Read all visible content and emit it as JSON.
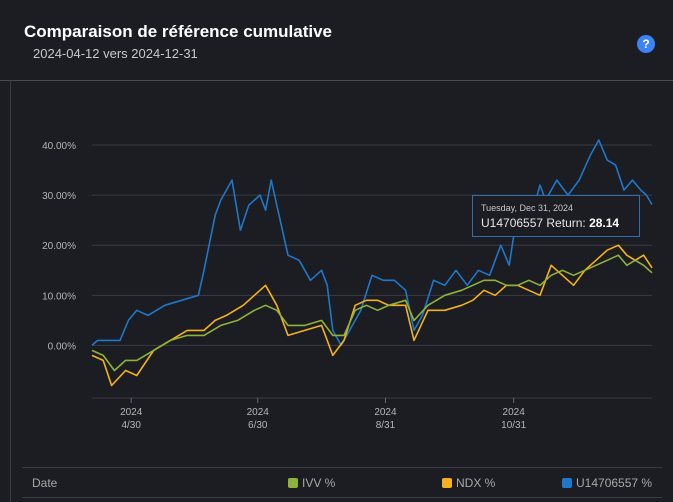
{
  "header": {
    "title": "Comparaison de référence cumulative",
    "subtitle": "2024-04-12 vers 2024-12-31",
    "help_icon": "?"
  },
  "tooltip": {
    "date": "Tuesday, Dec 31, 2024",
    "label": "U14706557 Return: ",
    "value": "28.14"
  },
  "legend": {
    "date_label": "Date",
    "items": [
      {
        "label": "IVV %",
        "color": "#8fb33a"
      },
      {
        "label": "NDX %",
        "color": "#f5b21c"
      },
      {
        "label": "U14706557 %",
        "color": "#1f77c9"
      }
    ]
  },
  "chart_data": {
    "type": "line",
    "ylabels": [
      "40.00%",
      "30.00%",
      "20.00%",
      "10.00%",
      "0.00%"
    ],
    "yticks": [
      40,
      30,
      20,
      10,
      0
    ],
    "ylim": [
      -10.5,
      45
    ],
    "xticks": [
      {
        "year": "2024",
        "md": "4/30",
        "t": 0.07
      },
      {
        "year": "2024",
        "md": "6/30",
        "t": 0.296
      },
      {
        "year": "2024",
        "md": "8/31",
        "t": 0.524
      },
      {
        "year": "2024",
        "md": "10/31",
        "t": 0.753
      }
    ],
    "grid": true,
    "series": [
      {
        "name": "U14706557 %",
        "color": "#1f77c9",
        "points": [
          [
            0,
            0
          ],
          [
            0.01,
            1
          ],
          [
            0.05,
            1
          ],
          [
            0.065,
            5
          ],
          [
            0.08,
            7
          ],
          [
            0.1,
            6
          ],
          [
            0.13,
            8
          ],
          [
            0.16,
            9
          ],
          [
            0.19,
            10
          ],
          [
            0.2,
            15
          ],
          [
            0.22,
            26
          ],
          [
            0.23,
            29
          ],
          [
            0.25,
            33
          ],
          [
            0.265,
            23
          ],
          [
            0.28,
            28
          ],
          [
            0.3,
            30
          ],
          [
            0.31,
            27
          ],
          [
            0.32,
            33
          ],
          [
            0.33,
            28
          ],
          [
            0.35,
            18
          ],
          [
            0.37,
            17
          ],
          [
            0.39,
            13
          ],
          [
            0.41,
            15
          ],
          [
            0.42,
            12
          ],
          [
            0.43,
            3
          ],
          [
            0.445,
            0
          ],
          [
            0.46,
            3
          ],
          [
            0.48,
            7
          ],
          [
            0.5,
            14
          ],
          [
            0.52,
            13
          ],
          [
            0.54,
            13
          ],
          [
            0.56,
            11
          ],
          [
            0.575,
            3
          ],
          [
            0.59,
            6
          ],
          [
            0.61,
            13
          ],
          [
            0.63,
            12
          ],
          [
            0.65,
            15
          ],
          [
            0.67,
            12
          ],
          [
            0.69,
            15
          ],
          [
            0.71,
            14
          ],
          [
            0.73,
            20
          ],
          [
            0.745,
            16
          ],
          [
            0.76,
            27
          ],
          [
            0.78,
            24
          ],
          [
            0.8,
            32
          ],
          [
            0.81,
            29
          ],
          [
            0.83,
            33
          ],
          [
            0.85,
            30
          ],
          [
            0.87,
            33
          ],
          [
            0.89,
            38
          ],
          [
            0.905,
            41
          ],
          [
            0.92,
            37
          ],
          [
            0.935,
            36
          ],
          [
            0.95,
            31
          ],
          [
            0.965,
            33
          ],
          [
            0.98,
            31
          ],
          [
            0.99,
            30
          ],
          [
            1,
            28.14
          ]
        ]
      },
      {
        "name": "NDX %",
        "color": "#f5b21c",
        "points": [
          [
            0,
            -2
          ],
          [
            0.02,
            -3
          ],
          [
            0.035,
            -8
          ],
          [
            0.06,
            -5
          ],
          [
            0.08,
            -6
          ],
          [
            0.11,
            -1
          ],
          [
            0.14,
            1
          ],
          [
            0.17,
            3
          ],
          [
            0.2,
            3
          ],
          [
            0.22,
            5
          ],
          [
            0.24,
            6
          ],
          [
            0.27,
            8
          ],
          [
            0.29,
            10
          ],
          [
            0.31,
            12
          ],
          [
            0.33,
            8
          ],
          [
            0.35,
            2
          ],
          [
            0.38,
            3
          ],
          [
            0.41,
            4
          ],
          [
            0.43,
            -2
          ],
          [
            0.45,
            1
          ],
          [
            0.47,
            8
          ],
          [
            0.49,
            9
          ],
          [
            0.51,
            9
          ],
          [
            0.53,
            8
          ],
          [
            0.56,
            8
          ],
          [
            0.575,
            1
          ],
          [
            0.6,
            7
          ],
          [
            0.63,
            7
          ],
          [
            0.66,
            8
          ],
          [
            0.68,
            9
          ],
          [
            0.7,
            11
          ],
          [
            0.72,
            10
          ],
          [
            0.74,
            12
          ],
          [
            0.76,
            12
          ],
          [
            0.78,
            11
          ],
          [
            0.8,
            10
          ],
          [
            0.82,
            16
          ],
          [
            0.84,
            14
          ],
          [
            0.86,
            12
          ],
          [
            0.88,
            15
          ],
          [
            0.9,
            17
          ],
          [
            0.92,
            19
          ],
          [
            0.94,
            20
          ],
          [
            0.955,
            18
          ],
          [
            0.97,
            17
          ],
          [
            0.985,
            18
          ],
          [
            1,
            15.5
          ]
        ]
      },
      {
        "name": "IVV %",
        "color": "#8fb33a",
        "points": [
          [
            0,
            -1
          ],
          [
            0.02,
            -2
          ],
          [
            0.04,
            -5
          ],
          [
            0.06,
            -3
          ],
          [
            0.08,
            -3
          ],
          [
            0.11,
            -1
          ],
          [
            0.14,
            1
          ],
          [
            0.17,
            2
          ],
          [
            0.2,
            2
          ],
          [
            0.23,
            4
          ],
          [
            0.26,
            5
          ],
          [
            0.29,
            7
          ],
          [
            0.31,
            8
          ],
          [
            0.33,
            7
          ],
          [
            0.35,
            4
          ],
          [
            0.38,
            4
          ],
          [
            0.41,
            5
          ],
          [
            0.43,
            2
          ],
          [
            0.45,
            2
          ],
          [
            0.47,
            7
          ],
          [
            0.49,
            8
          ],
          [
            0.51,
            7
          ],
          [
            0.53,
            8
          ],
          [
            0.56,
            9
          ],
          [
            0.575,
            5
          ],
          [
            0.6,
            8
          ],
          [
            0.63,
            10
          ],
          [
            0.66,
            11
          ],
          [
            0.68,
            12
          ],
          [
            0.7,
            13
          ],
          [
            0.72,
            13
          ],
          [
            0.74,
            12
          ],
          [
            0.76,
            12
          ],
          [
            0.78,
            13
          ],
          [
            0.8,
            12
          ],
          [
            0.82,
            14
          ],
          [
            0.84,
            15
          ],
          [
            0.86,
            14
          ],
          [
            0.88,
            15
          ],
          [
            0.9,
            16
          ],
          [
            0.92,
            17
          ],
          [
            0.94,
            18
          ],
          [
            0.955,
            16
          ],
          [
            0.97,
            17
          ],
          [
            0.985,
            16
          ],
          [
            1,
            14.5
          ]
        ]
      }
    ]
  }
}
